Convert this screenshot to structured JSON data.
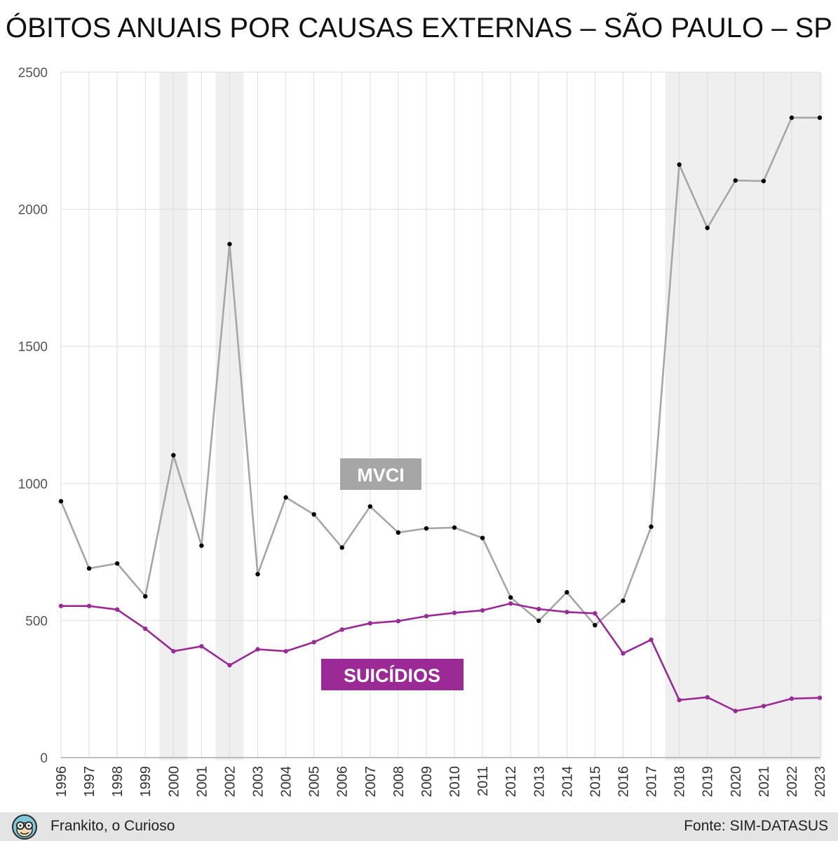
{
  "title": "ÓBITOS ANUAIS POR CAUSAS EXTERNAS – SÃO PAULO – SP",
  "footer": {
    "credit": "Frankito, o Curioso",
    "source": "Fonte: SIM-DATASUS"
  },
  "colors": {
    "mvci": "#a6a6a6",
    "suicidios": "#9b2a96",
    "mvci_label_bg": "#a6a6a6",
    "suicidios_label_bg": "#9b2a96",
    "shade": "#efefef",
    "grid": "#dddddd",
    "points": "#000000"
  },
  "chart_data": {
    "type": "line",
    "title": "ÓBITOS ANUAIS POR CAUSAS EXTERNAS – SÃO PAULO – SP",
    "xlabel": "",
    "ylabel": "",
    "ylim": [
      0,
      2500
    ],
    "yticks": [
      0,
      500,
      1000,
      1500,
      2000,
      2500
    ],
    "x": [
      "1996",
      "1997",
      "1998",
      "1999",
      "2000",
      "2001",
      "2002",
      "2003",
      "2004",
      "2005",
      "2006",
      "2007",
      "2008",
      "2009",
      "2010",
      "2011",
      "2012",
      "2013",
      "2014",
      "2015",
      "2016",
      "2017",
      "2018",
      "2019",
      "2020",
      "2021",
      "2022",
      "2023"
    ],
    "grid": true,
    "shaded_years": [
      [
        "2000",
        "2000"
      ],
      [
        "2002",
        "2002"
      ],
      [
        "2018",
        "2023"
      ]
    ],
    "series": [
      {
        "name": "MVCI",
        "values": [
          935,
          690,
          708,
          588,
          1103,
          773,
          1873,
          669,
          949,
          887,
          766,
          916,
          821,
          836,
          839,
          801,
          584,
          499,
          603,
          483,
          572,
          842,
          2163,
          1932,
          2105,
          2103,
          2334,
          2334
        ]
      },
      {
        "name": "SUICÍDIOS",
        "values": [
          553,
          553,
          540,
          470,
          388,
          406,
          337,
          395,
          388,
          421,
          467,
          490,
          498,
          516,
          528,
          537,
          562,
          542,
          531,
          526,
          380,
          430,
          210,
          220,
          170,
          188,
          215,
          218
        ]
      }
    ]
  }
}
